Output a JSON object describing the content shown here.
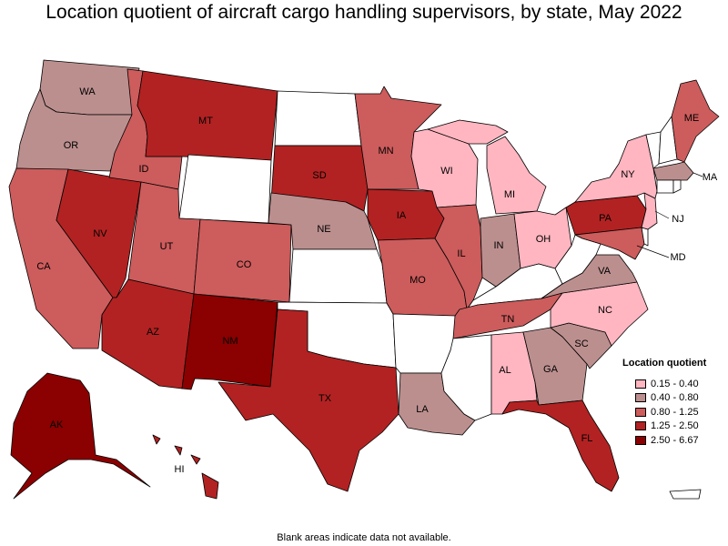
{
  "title": "Location quotient of aircraft cargo handling supervisors, by state, May 2022",
  "footnote": "Blank areas indicate data not available.",
  "legend": {
    "title": "Location quotient",
    "items": [
      {
        "label": "0.15 - 0.40",
        "color": "#ffb6c1"
      },
      {
        "label": "0.40 - 0.80",
        "color": "#bc8f8f"
      },
      {
        "label": "0.80 - 1.25",
        "color": "#cd5c5c"
      },
      {
        "label": "1.25 - 2.50",
        "color": "#b22222"
      },
      {
        "label": "2.50 - 6.67",
        "color": "#8b0000"
      }
    ]
  },
  "states": {
    "WA": 1,
    "OR": 1,
    "CA": 2,
    "NV": 3,
    "ID": 2,
    "MT": 3,
    "WY": null,
    "UT": 2,
    "AZ": 3,
    "CO": 2,
    "NM": 4,
    "ND": null,
    "SD": 3,
    "NE": 1,
    "KS": null,
    "OK": null,
    "TX": 3,
    "MN": 2,
    "IA": 3,
    "MO": 2,
    "AR": null,
    "LA": 1,
    "WI": 0,
    "IL": 2,
    "MI": 0,
    "IN": 1,
    "OH": 0,
    "KY": null,
    "TN": 2,
    "MS": null,
    "AL": 0,
    "GA": 1,
    "FL": 3,
    "SC": 1,
    "NC": 0,
    "VA": 1,
    "WV": null,
    "PA": 3,
    "NY": 0,
    "VT": null,
    "NH": null,
    "ME": 2,
    "MA": 1,
    "RI": null,
    "CT": null,
    "NJ": 0,
    "DE": null,
    "MD": 2,
    "AK": 4,
    "HI": 3,
    "PR": null
  }
}
